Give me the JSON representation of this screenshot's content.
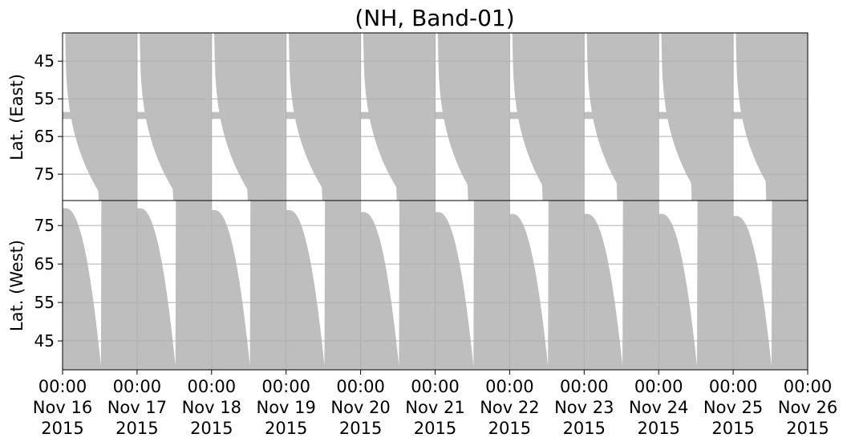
{
  "chart_data": {
    "type": "area",
    "title": "(NH, Band-01)",
    "grid": true,
    "fill_color": "#bebebe",
    "x": {
      "start": "2015-11-16T00:00",
      "end": "2015-11-26T00:00",
      "ticks": [
        {
          "time": "00:00",
          "date": "Nov 16",
          "year": "2015"
        },
        {
          "time": "00:00",
          "date": "Nov 17",
          "year": "2015"
        },
        {
          "time": "00:00",
          "date": "Nov 18",
          "year": "2015"
        },
        {
          "time": "00:00",
          "date": "Nov 19",
          "year": "2015"
        },
        {
          "time": "00:00",
          "date": "Nov 20",
          "year": "2015"
        },
        {
          "time": "00:00",
          "date": "Nov 21",
          "year": "2015"
        },
        {
          "time": "00:00",
          "date": "Nov 22",
          "year": "2015"
        },
        {
          "time": "00:00",
          "date": "Nov 23",
          "year": "2015"
        },
        {
          "time": "00:00",
          "date": "Nov 24",
          "year": "2015"
        },
        {
          "time": "00:00",
          "date": "Nov 25",
          "year": "2015"
        },
        {
          "time": "00:00",
          "date": "Nov 26",
          "year": "2015"
        }
      ]
    },
    "panels": [
      {
        "name": "east",
        "ylabel": "Lat. (East)",
        "ylim": [
          37.5,
          82
        ],
        "inverted": true,
        "yticks": [
          "45",
          "55",
          "65",
          "75"
        ],
        "band": [
          58.5,
          59.5
        ],
        "coverage_min_lat": [
          79.5,
          79,
          79,
          78.5,
          78.5,
          78,
          78,
          77.5,
          77.5,
          77,
          77
        ]
      },
      {
        "name": "west",
        "ylabel": "Lat. (West)",
        "ylim": [
          37.5,
          81.5
        ],
        "inverted": false,
        "yticks": [
          "45",
          "55",
          "65",
          "75"
        ],
        "coverage_max_lat": [
          79.5,
          79.5,
          79,
          79,
          78.5,
          78.5,
          78,
          78,
          78,
          77.5,
          77.5
        ]
      }
    ]
  }
}
